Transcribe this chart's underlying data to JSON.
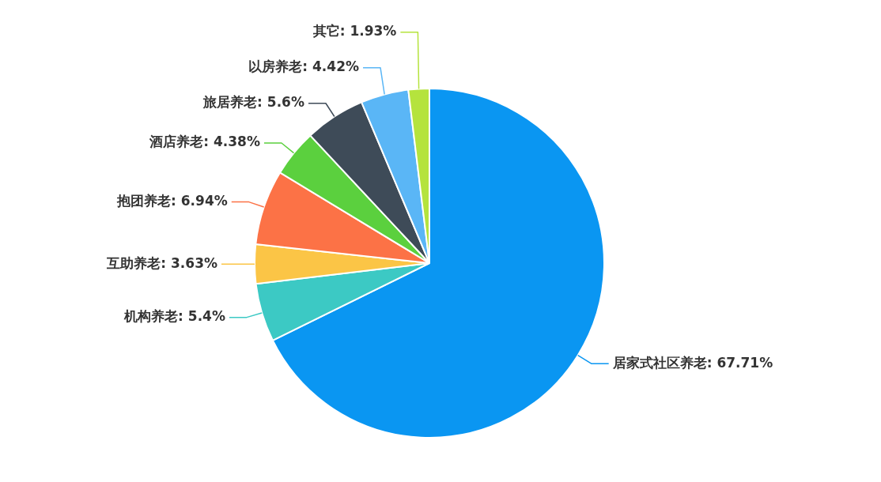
{
  "chart_data": {
    "type": "pie",
    "categories": [
      "居家式社区养老",
      "机构养老",
      "互助养老",
      "抱团养老",
      "酒店养老",
      "旅居养老",
      "以房养老",
      "其它"
    ],
    "values": [
      67.71,
      5.4,
      3.63,
      6.94,
      4.38,
      5.6,
      4.42,
      1.93
    ],
    "value_labels": [
      "67.71%",
      "5.4%",
      "3.63%",
      "6.94%",
      "4.38%",
      "5.6%",
      "4.42%",
      "1.93%"
    ],
    "colors": [
      "#0a96f2",
      "#3cc9c4",
      "#fbc546",
      "#fc7246",
      "#5bd03e",
      "#3e4b58",
      "#5ab6f6",
      "#b5e33d"
    ],
    "data_labels": true,
    "legend": false
  }
}
